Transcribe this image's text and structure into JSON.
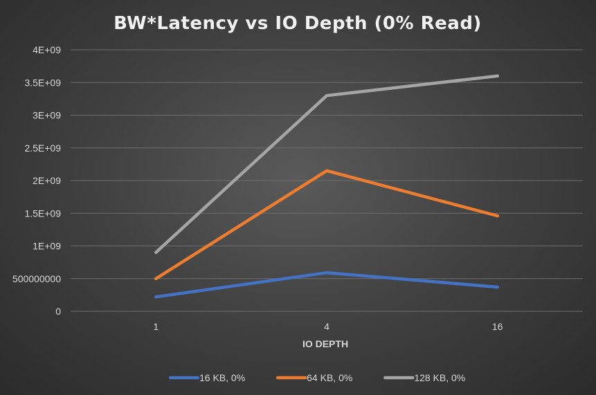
{
  "chart_data": {
    "type": "line",
    "title": "BW*Latency vs IO Depth (0% Read)",
    "xlabel": "IO DEPTH",
    "ylabel": "",
    "categories": [
      "1",
      "4",
      "16"
    ],
    "ylim": [
      0,
      4000000000
    ],
    "y_ticks": [
      {
        "value": 0,
        "label": "0"
      },
      {
        "value": 500000000,
        "label": "500000000"
      },
      {
        "value": 1000000000,
        "label": "1E+09"
      },
      {
        "value": 1500000000,
        "label": "1.5E+09"
      },
      {
        "value": 2000000000,
        "label": "2E+09"
      },
      {
        "value": 2500000000,
        "label": "2.5E+09"
      },
      {
        "value": 3000000000,
        "label": "3E+09"
      },
      {
        "value": 3500000000,
        "label": "3.5E+09"
      },
      {
        "value": 4000000000,
        "label": "4E+09"
      }
    ],
    "grid": true,
    "legend_position": "bottom",
    "series": [
      {
        "name": "16 KB, 0%",
        "color": "#4472c4",
        "values": [
          220000000,
          590000000,
          370000000
        ]
      },
      {
        "name": "64 KB, 0%",
        "color": "#ed7d31",
        "values": [
          500000000,
          2150000000,
          1460000000
        ]
      },
      {
        "name": "128 KB, 0%",
        "color": "#a5a5a5",
        "values": [
          900000000,
          3300000000,
          3600000000
        ]
      }
    ]
  }
}
